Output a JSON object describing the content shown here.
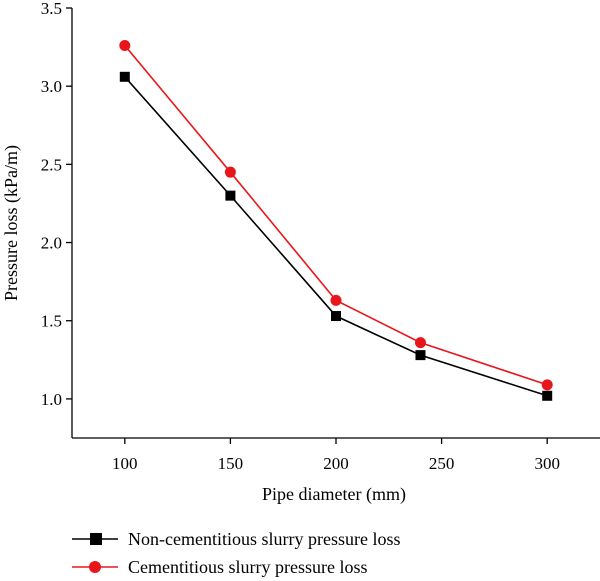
{
  "chart_data": {
    "type": "line",
    "x": [
      100,
      150,
      200,
      240,
      300
    ],
    "xticks": [
      "100",
      "150",
      "200",
      "250",
      "300"
    ],
    "yticks": [
      "1.0",
      "1.5",
      "2.0",
      "2.5",
      "3.0",
      "3.5"
    ],
    "xlim": [
      75,
      325
    ],
    "ylim": [
      0.75,
      3.5
    ],
    "xlabel": "Pipe diameter (mm)",
    "ylabel": "Pressure loss (kPa/m)",
    "legend_position": "bottom",
    "grid": false,
    "series": [
      {
        "name": "Non-cementitious slurry pressure loss",
        "values": [
          3.06,
          2.3,
          1.53,
          1.28,
          1.02
        ],
        "color": "#000000",
        "marker": "square"
      },
      {
        "name": "Cementitious slurry pressure loss",
        "values": [
          3.26,
          2.45,
          1.63,
          1.36,
          1.09
        ],
        "color": "#e8161b",
        "marker": "circle"
      }
    ]
  }
}
